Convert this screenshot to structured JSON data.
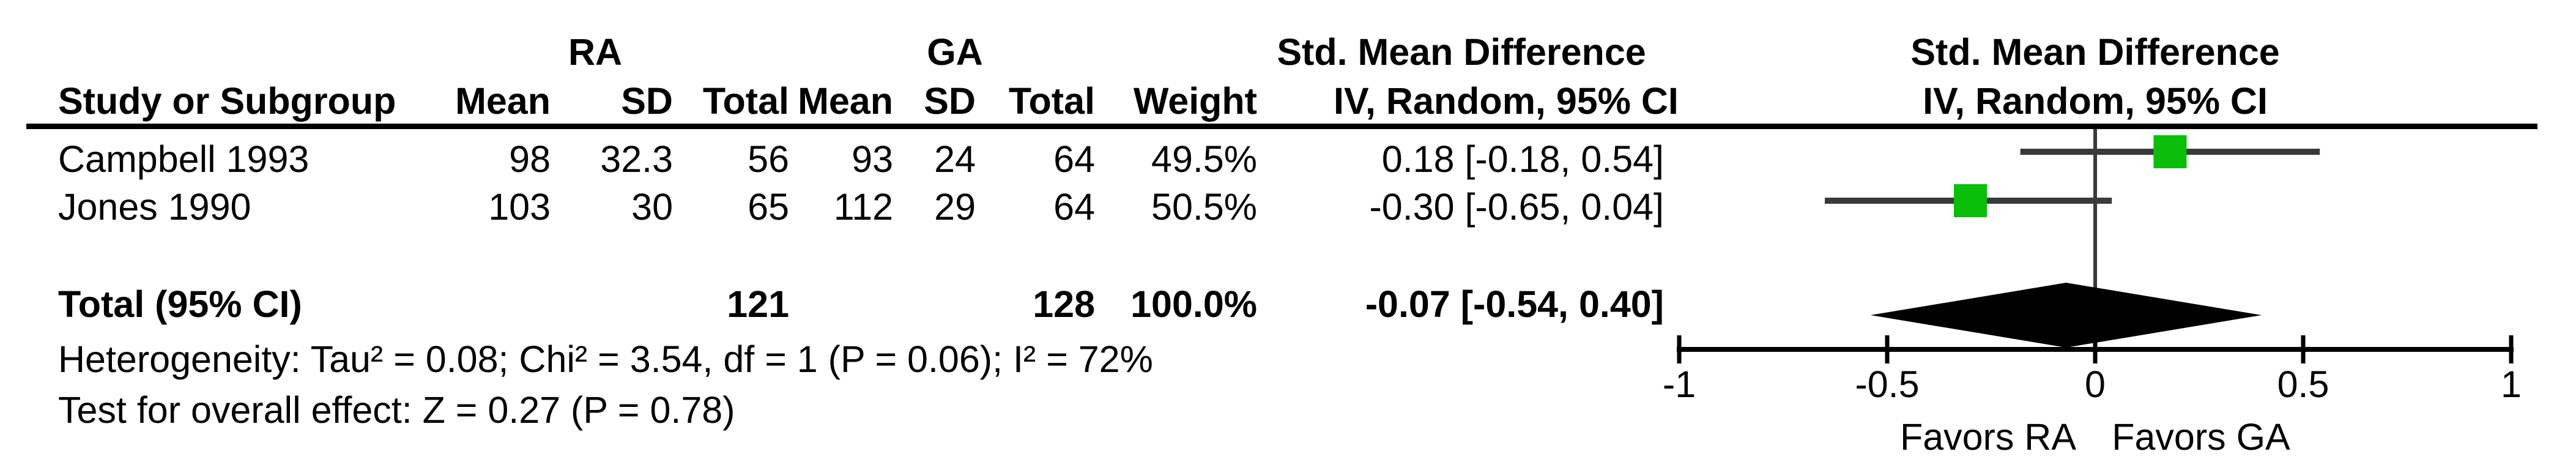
{
  "chart_data": {
    "type": "forest",
    "effect_measure": "Std. Mean Difference",
    "method": "IV, Random, 95% CI",
    "group_labels": {
      "group1": "RA",
      "group2": "GA"
    },
    "x": {
      "ticks": [
        -1,
        -0.5,
        0,
        0.5,
        1
      ],
      "xlim": [
        -1,
        1
      ]
    },
    "studies": [
      {
        "name": "Campbell 1993",
        "mean_ra": 98,
        "sd_ra": 32.3,
        "total_ra": 56,
        "mean_ga": 93,
        "sd_ga": 24,
        "total_ga": 64,
        "weight_pct": 49.5,
        "smd": 0.18,
        "ci_low": -0.18,
        "ci_high": 0.54
      },
      {
        "name": "Jones 1990",
        "mean_ra": 103,
        "sd_ra": 30,
        "total_ra": 65,
        "mean_ga": 112,
        "sd_ga": 29,
        "total_ga": 64,
        "weight_pct": 50.5,
        "smd": -0.3,
        "ci_low": -0.65,
        "ci_high": 0.04
      }
    ],
    "total": {
      "label": "Total (95% CI)",
      "total_ra": 121,
      "total_ga": 128,
      "weight_pct": 100.0,
      "smd": -0.07,
      "ci_low": -0.54,
      "ci_high": 0.4
    },
    "heterogeneity": {
      "tau2": 0.08,
      "chi2": 3.54,
      "df": 1,
      "p": 0.06,
      "i2_pct": 72
    },
    "overall_effect": {
      "z": 0.27,
      "p": 0.78
    }
  },
  "header": {
    "group1": "RA",
    "group2": "GA",
    "effect_title": "Std. Mean Difference",
    "effect_subtitle": "IV, Random, 95% CI",
    "plot_title": "Std. Mean Difference",
    "plot_subtitle": "IV, Random, 95% CI",
    "col_study": "Study or Subgroup",
    "col_mean_ra": "Mean",
    "col_sd_ra": "SD",
    "col_total_ra": "Total",
    "col_mean_ga": "Mean",
    "col_sd_ga": "SD",
    "col_total_ga": "Total",
    "col_weight": "Weight"
  },
  "rows": [
    {
      "study": "Campbell 1993",
      "mean_ra": "98",
      "sd_ra": "32.3",
      "total_ra": "56",
      "mean_ga": "93",
      "sd_ga": "24",
      "total_ga": "64",
      "weight": "49.5%",
      "ci": "0.18 [-0.18, 0.54]"
    },
    {
      "study": "Jones 1990",
      "mean_ra": "103",
      "sd_ra": "30",
      "total_ra": "65",
      "mean_ga": "112",
      "sd_ga": "29",
      "total_ga": "64",
      "weight": "50.5%",
      "ci": "-0.30 [-0.65, 0.04]"
    }
  ],
  "total_row": {
    "label": "Total (95% CI)",
    "total_ra": "121",
    "total_ga": "128",
    "weight": "100.0%",
    "ci": "-0.07 [-0.54, 0.40]"
  },
  "footer": {
    "heterogeneity": "Heterogeneity: Tau² = 0.08; Chi² = 3.54, df = 1 (P = 0.06); I² = 72%",
    "overall": "Test for overall effect: Z = 0.27 (P = 0.78)"
  },
  "axis": {
    "ticks": [
      "-1",
      "-0.5",
      "0",
      "0.5",
      "1"
    ],
    "favors_left": "Favors RA",
    "favors_right": "Favors GA"
  },
  "colors": {
    "marker": "#0abe0a",
    "ci_line": "#3a3a3a",
    "diamond": "#000000",
    "axis": "#000000"
  }
}
